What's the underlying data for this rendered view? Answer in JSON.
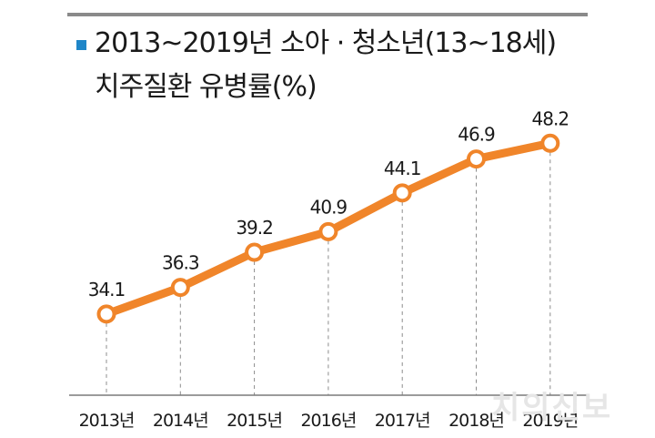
{
  "title_line_1": "2013~2019년 소아 · 청소년(13~18세)",
  "title_line_2": "치주질환 유병률(%)",
  "watermark": "치의신보",
  "colors": {
    "line": "#f0852a",
    "accent_square": "#1f86c8",
    "axis": "#7a7a7a",
    "rule": "#8a8a8a"
  },
  "chart_data": {
    "type": "line",
    "title": "2013~2019년 소아 · 청소년(13~18세) 치주질환 유병률(%)",
    "categories": [
      "2013년",
      "2014년",
      "2015년",
      "2016년",
      "2017년",
      "2018년",
      "2019년"
    ],
    "series": [
      {
        "values": [
          34.1,
          36.3,
          39.2,
          40.9,
          44.1,
          46.9,
          48.2
        ]
      }
    ],
    "value_labels": [
      "34.1",
      "36.3",
      "39.2",
      "40.9",
      "44.1",
      "46.9",
      "48.2"
    ],
    "xlabel": "",
    "ylabel": "",
    "ylim": [
      27.4,
      49.5
    ],
    "grid": false,
    "legend": "none"
  }
}
